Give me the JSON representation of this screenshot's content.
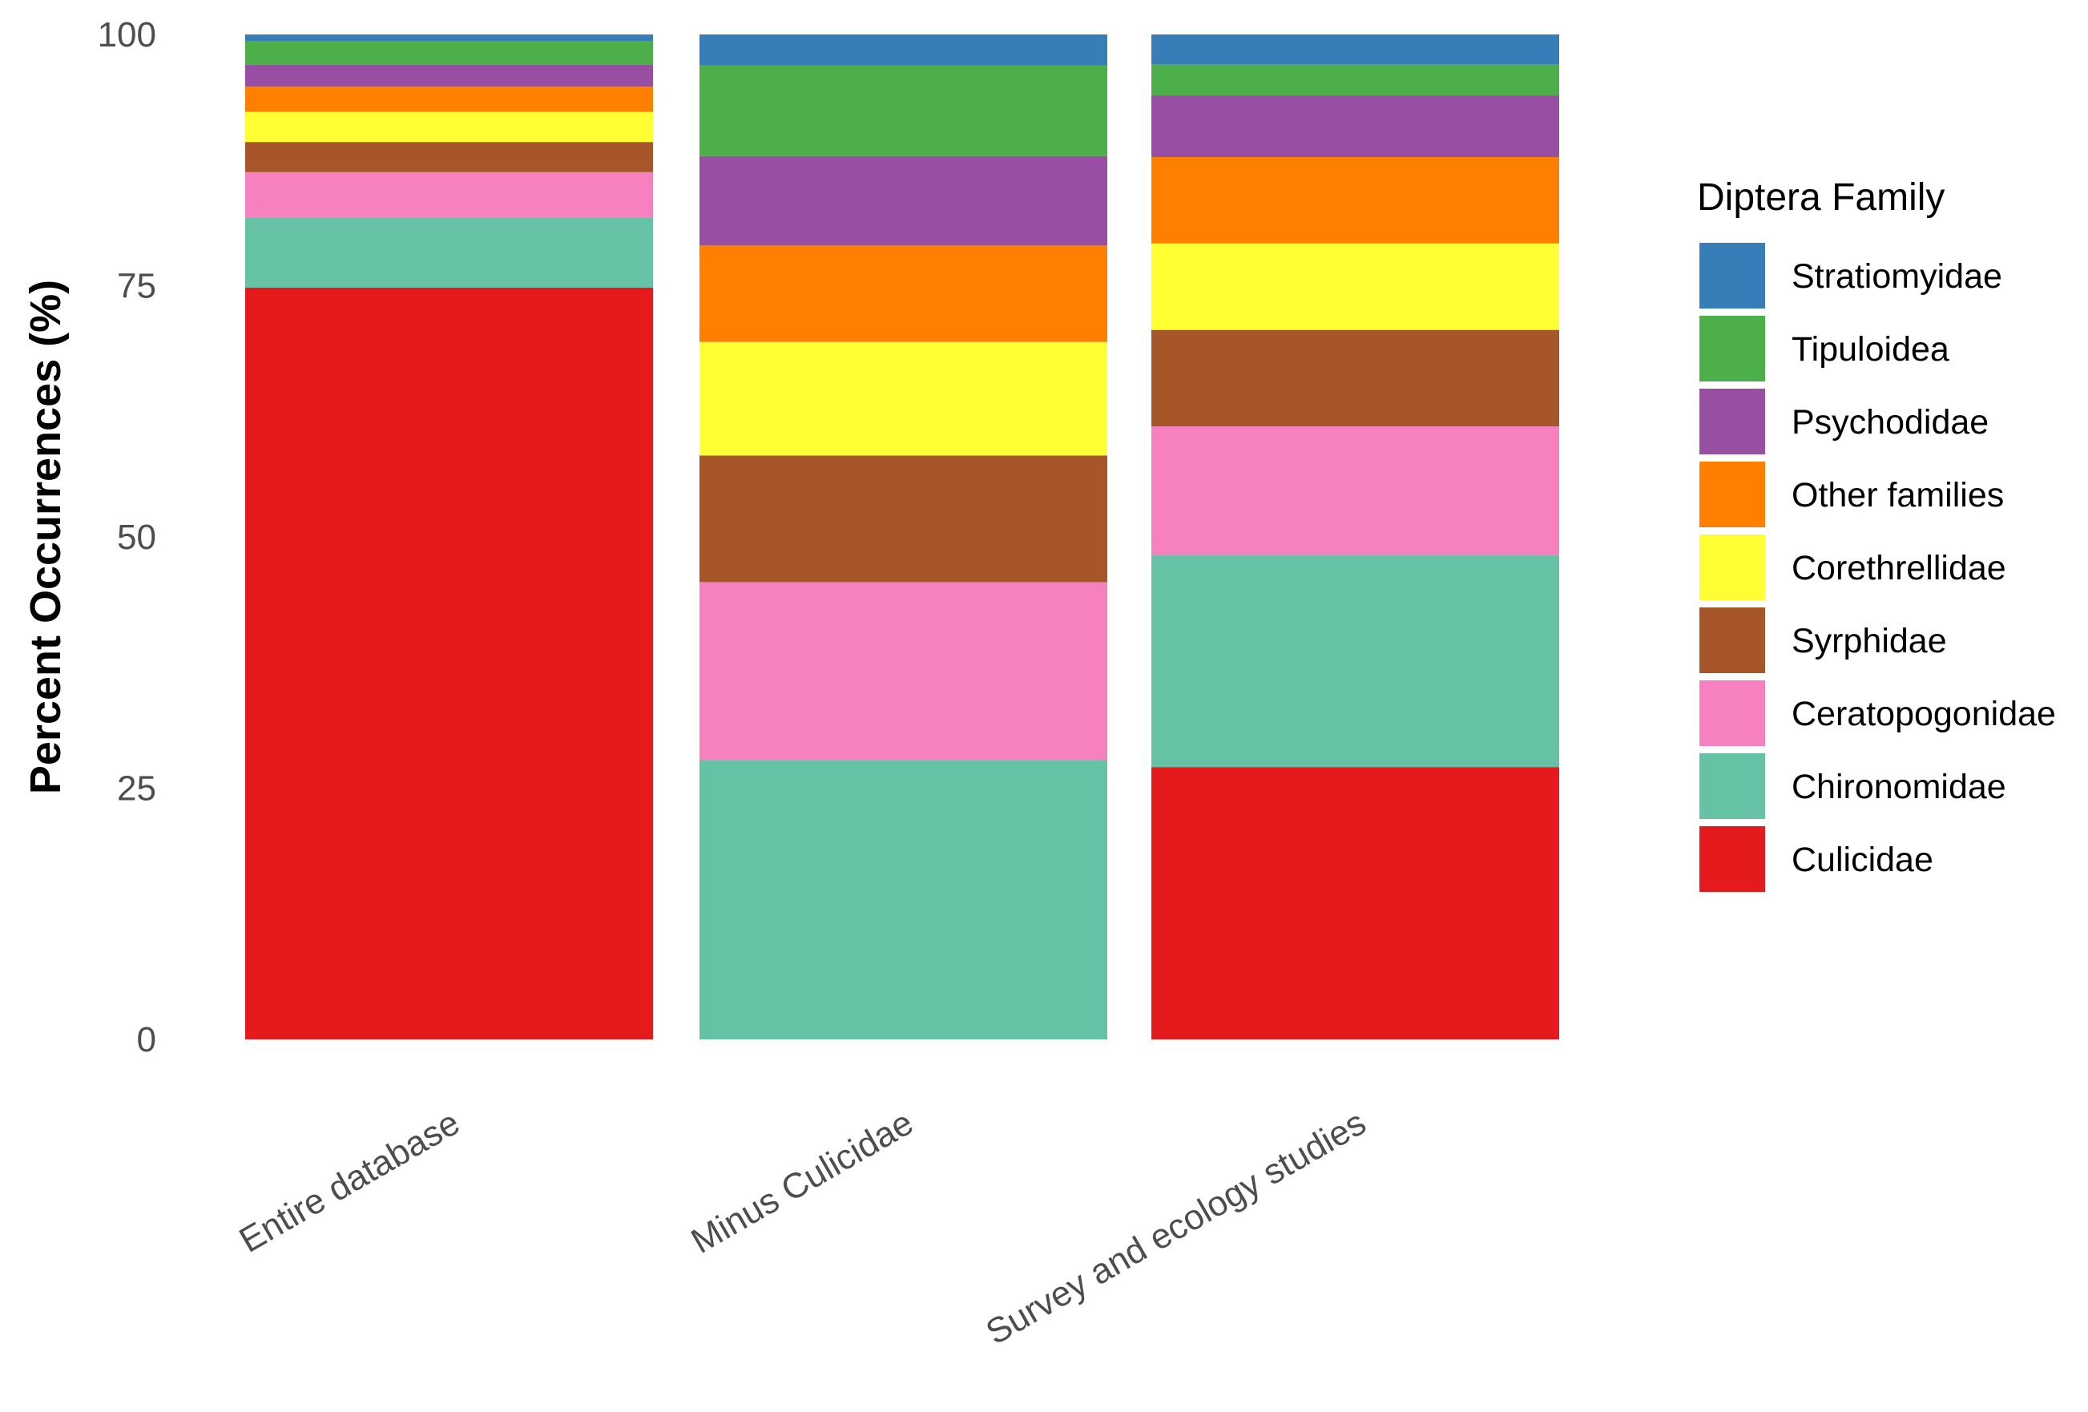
{
  "chart_data": {
    "type": "bar",
    "stacked": true,
    "title": "",
    "xlabel": "",
    "ylabel": "Percent Occurrences (%)",
    "ylim": [
      0,
      100
    ],
    "yticks": [
      0,
      25,
      50,
      75,
      100
    ],
    "grid": false,
    "legend_title": "Diptera Family",
    "legend_position": "right",
    "categories": [
      "Entire database",
      "Minus Culicidae",
      "Survey and ecology studies"
    ],
    "series": [
      {
        "name": "Culicidae",
        "color": "#E41A1C",
        "values": [
          74.8,
          0,
          27.1
        ]
      },
      {
        "name": "Chironomidae",
        "color": "#66C2A5",
        "values": [
          7.0,
          27.8,
          21.1
        ]
      },
      {
        "name": "Ceratopogonidae",
        "color": "#F781BF",
        "values": [
          4.5,
          17.7,
          12.8
        ]
      },
      {
        "name": "Syrphidae",
        "color": "#A65628",
        "values": [
          3.0,
          12.6,
          9.6
        ]
      },
      {
        "name": "Corethrellidae",
        "color": "#FFFF33",
        "values": [
          3.0,
          11.3,
          8.6
        ]
      },
      {
        "name": "Other families",
        "color": "#FF7F00",
        "values": [
          2.5,
          9.6,
          8.6
        ]
      },
      {
        "name": "Psychodidae",
        "color": "#984EA3",
        "values": [
          2.2,
          8.9,
          6.1
        ]
      },
      {
        "name": "Tipuloidea",
        "color": "#4DAF4A",
        "values": [
          2.3,
          9.0,
          3.1
        ]
      },
      {
        "name": "Stratiomyidae",
        "color": "#377EB8",
        "values": [
          0.7,
          3.1,
          3.0
        ]
      }
    ],
    "legend_order": [
      "Stratiomyidae",
      "Tipuloidea",
      "Psychodidae",
      "Other families",
      "Corethrellidae",
      "Syrphidae",
      "Ceratopogonidae",
      "Chironomidae",
      "Culicidae"
    ]
  }
}
